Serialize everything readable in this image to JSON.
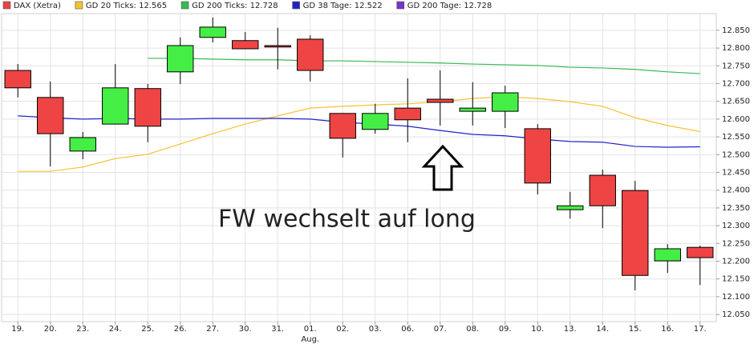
{
  "chart_data": {
    "type": "candlestick",
    "categories": [
      "19.",
      "20.",
      "23.",
      "24.",
      "25.",
      "26.",
      "27.",
      "30.",
      "31.",
      "01.",
      "02.",
      "03.",
      "06.",
      "07.",
      "08.",
      "09.",
      "10.",
      "13.",
      "14.",
      "15.",
      "16.",
      "17."
    ],
    "x_annotations": [
      {
        "category": "01.",
        "text": "Aug."
      }
    ],
    "annotation": "FW wechselt auf long",
    "series": [
      {
        "name": "DAX (Xetra)",
        "type": "candlestick",
        "color": "#e84444",
        "up_color": "#44ee44",
        "down_color": "#ee4444",
        "open": [
          12.737,
          12.661,
          12.51,
          12.586,
          12.686,
          12.733,
          12.83,
          12.821,
          12.807,
          12.825,
          12.616,
          12.571,
          12.631,
          12.656,
          12.622,
          12.622,
          12.573,
          12.345,
          12.442,
          12.399,
          12.201,
          12.239
        ],
        "high": [
          12.755,
          12.706,
          12.564,
          12.755,
          12.699,
          12.83,
          12.886,
          12.845,
          12.857,
          12.836,
          12.616,
          12.643,
          12.715,
          12.737,
          12.704,
          12.694,
          12.586,
          12.395,
          12.458,
          12.426,
          12.248,
          12.244
        ],
        "low": [
          12.661,
          12.467,
          12.487,
          12.586,
          12.535,
          12.699,
          12.816,
          12.798,
          12.74,
          12.706,
          12.492,
          12.559,
          12.535,
          12.582,
          12.582,
          12.575,
          12.388,
          12.32,
          12.293,
          12.118,
          12.167,
          12.133
        ],
        "close": [
          12.688,
          12.559,
          12.548,
          12.688,
          12.58,
          12.807,
          12.859,
          12.798,
          12.803,
          12.737,
          12.546,
          12.616,
          12.598,
          12.647,
          12.631,
          12.674,
          12.42,
          12.356,
          12.356,
          12.16,
          12.235,
          12.21
        ]
      },
      {
        "name": "GD 20 Ticks: 12.565",
        "type": "line",
        "color": "#f5c230",
        "values": [
          12.453,
          12.453,
          12.465,
          12.489,
          12.501,
          12.53,
          12.559,
          12.586,
          12.609,
          12.631,
          12.636,
          12.64,
          12.643,
          12.649,
          12.658,
          12.663,
          12.658,
          12.649,
          12.636,
          12.604,
          12.582,
          12.565
        ]
      },
      {
        "name": "GD 200 Ticks: 12.728",
        "type": "line",
        "color": "#33bb55",
        "values": [
          null,
          null,
          null,
          null,
          12.771,
          12.771,
          12.769,
          12.767,
          12.767,
          12.764,
          12.764,
          12.762,
          12.76,
          12.758,
          12.755,
          12.753,
          12.751,
          12.746,
          12.744,
          12.74,
          12.733,
          12.728
        ]
      },
      {
        "name": "GD 38 Tage: 12.522",
        "type": "line",
        "color": "#2222cc",
        "values": [
          12.609,
          12.604,
          12.6,
          12.602,
          12.6,
          12.6,
          12.602,
          12.602,
          12.602,
          12.6,
          12.591,
          12.586,
          12.58,
          12.568,
          12.557,
          12.553,
          12.544,
          12.537,
          12.535,
          12.523,
          12.521,
          12.522
        ]
      },
      {
        "name": "GD 200 Tage: 12.728",
        "type": "line",
        "color": "#7733cc"
      }
    ],
    "ylim": [
      12.03,
      12.897
    ],
    "yticks": [
      {
        "value": 12.05,
        "label": "12.050"
      },
      {
        "value": 12.1,
        "label": "12.100"
      },
      {
        "value": 12.15,
        "label": "12.150"
      },
      {
        "value": 12.2,
        "label": "12.200"
      },
      {
        "value": 12.25,
        "label": "12.250"
      },
      {
        "value": 12.3,
        "label": "12.300"
      },
      {
        "value": 12.35,
        "label": "12.350"
      },
      {
        "value": 12.4,
        "label": "12.400"
      },
      {
        "value": 12.45,
        "label": "12.450"
      },
      {
        "value": 12.5,
        "label": "12.500"
      },
      {
        "value": 12.55,
        "label": "12.550"
      },
      {
        "value": 12.6,
        "label": "12.600"
      },
      {
        "value": 12.65,
        "label": "12.650"
      },
      {
        "value": 12.7,
        "label": "12.700"
      },
      {
        "value": 12.75,
        "label": "12.750"
      },
      {
        "value": 12.8,
        "label": "12.800"
      },
      {
        "value": 12.85,
        "label": "12.850"
      }
    ],
    "grid": true
  }
}
